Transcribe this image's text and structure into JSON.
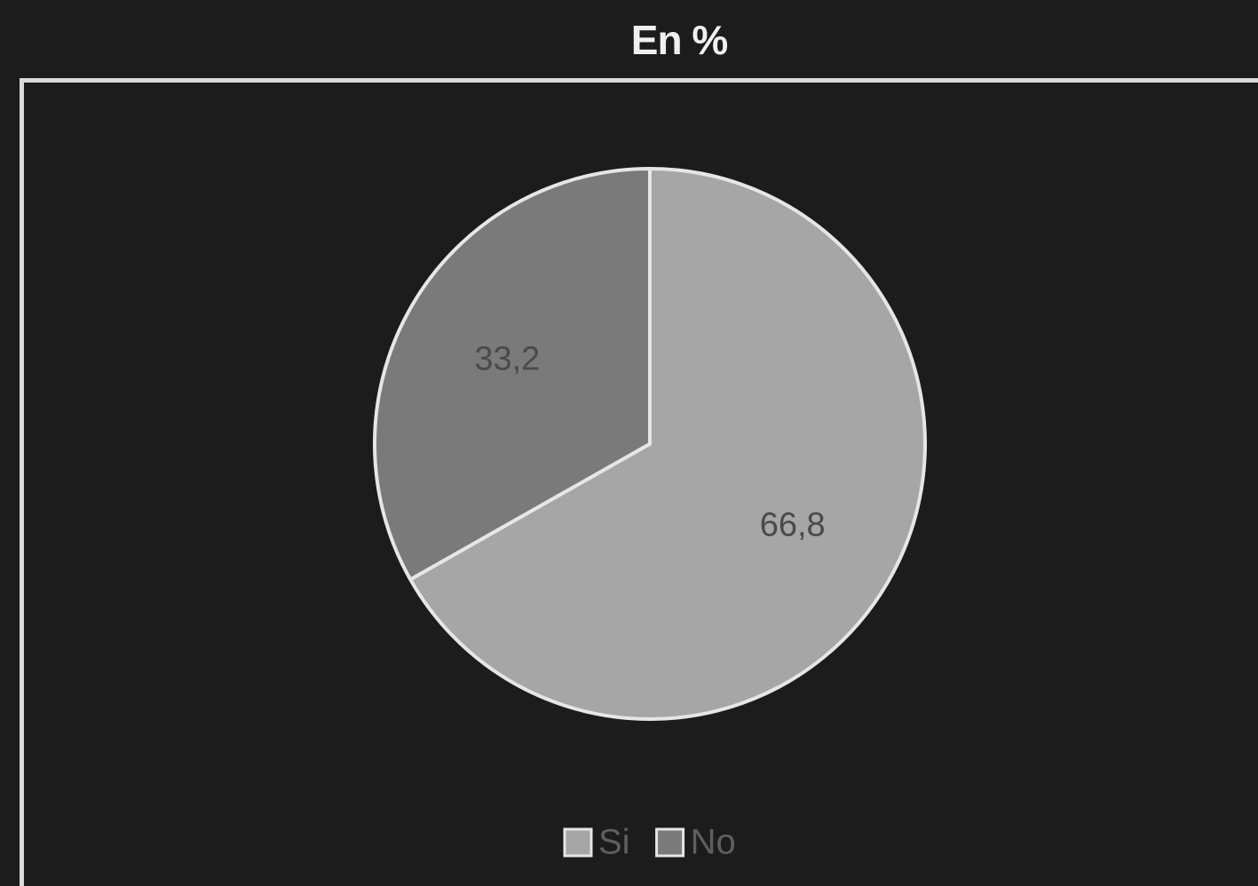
{
  "chart_data": {
    "type": "pie",
    "title": "En %",
    "slices": [
      {
        "label": "Si",
        "value": 66.8,
        "display": "66,8",
        "color": "#a6a6a6"
      },
      {
        "label": "No",
        "value": 33.2,
        "display": "33,2",
        "color": "#7a7a7a"
      }
    ],
    "start_angle_deg": 0,
    "direction": "clockwise",
    "slice_border_color": "#e6e6e6",
    "legend_position": "bottom",
    "background_color": "#1c1c1c"
  }
}
